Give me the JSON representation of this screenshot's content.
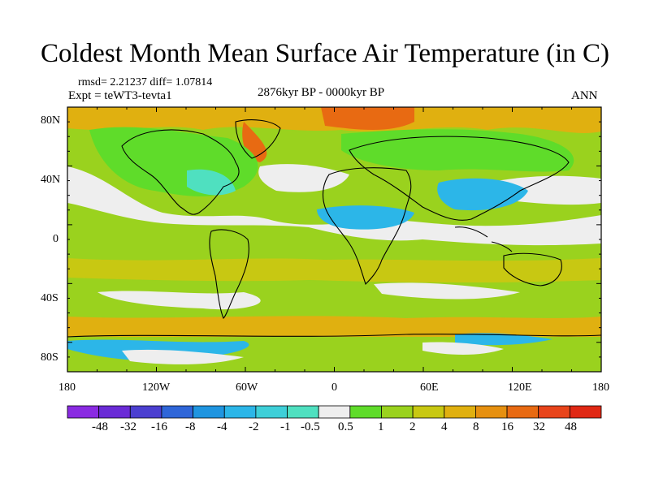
{
  "title": "Coldest Month Mean Surface Air Temperature (in C)",
  "stats": "rmsd= 2.21237 diff= 1.07814",
  "experiment": "Expt = teWT3-tevta1",
  "period": "2876kyr BP - 0000kyr BP",
  "season": "ANN",
  "lat_ticks": [
    "80N",
    "40N",
    "0",
    "40S",
    "80S"
  ],
  "lon_ticks": [
    "180",
    "120W",
    "60W",
    "0",
    "60E",
    "120E",
    "180"
  ],
  "colorbar": {
    "labels": [
      "-48",
      "-32",
      "-16",
      "-8",
      "-4",
      "-2",
      "-1",
      "-0.5",
      "0.5",
      "1",
      "2",
      "4",
      "8",
      "16",
      "32",
      "48"
    ],
    "colors": [
      "#8a2be2",
      "#6a2bd6",
      "#4b3fd0",
      "#2f66d8",
      "#1f95e0",
      "#2cb6e8",
      "#3ecfd8",
      "#4fe0c0",
      "#eeeeee",
      "#5fdc2a",
      "#9ad21e",
      "#c8c812",
      "#e0b010",
      "#e69010",
      "#e86a12",
      "#e8441a",
      "#e02814"
    ]
  },
  "map_colors": {
    "ocean": "#9ad21e",
    "neutral": "#eeeeee",
    "warm": "#c8c812",
    "warmer": "#e0b010",
    "hot": "#e86a12",
    "cool": "#4fe0c0",
    "cold": "#2cb6e8",
    "green": "#5fdc2a"
  }
}
